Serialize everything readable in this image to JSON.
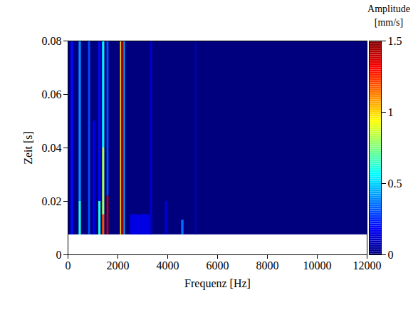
{
  "chart_data": {
    "type": "heatmap",
    "x_label": "Frequenz [Hz]",
    "y_label": "Zeit [s]",
    "xlim": [
      0,
      12000
    ],
    "xticks": [
      0,
      2000,
      4000,
      6000,
      8000,
      10000,
      12000
    ],
    "ylim": [
      0,
      0.08
    ],
    "yticks": [
      0,
      0.02,
      0.04,
      0.06,
      0.08
    ],
    "color": "jet",
    "cells": [
      {
        "x1": 0,
        "x2": 12000,
        "y1": 0.0075,
        "y2": 0.08,
        "value": 0
      },
      {
        "x1": 120,
        "x2": 220,
        "y1": 0.0075,
        "y2": 0.08,
        "value": 0.2
      },
      {
        "x1": 440,
        "x2": 530,
        "y1": 0.02,
        "y2": 0.08,
        "value": 0.4
      },
      {
        "x1": 440,
        "x2": 530,
        "y1": 0.0075,
        "y2": 0.02,
        "value": 0.6
      },
      {
        "x1": 820,
        "x2": 900,
        "y1": 0.0075,
        "y2": 0.08,
        "value": 0.3
      },
      {
        "x1": 1000,
        "x2": 1100,
        "y1": 0.0075,
        "y2": 0.05,
        "value": 0.15
      },
      {
        "x1": 1230,
        "x2": 1320,
        "y1": 0.0075,
        "y2": 0.02,
        "value": 0.6
      },
      {
        "x1": 1230,
        "x2": 1320,
        "y1": 0.02,
        "y2": 0.08,
        "value": 0.2
      },
      {
        "x1": 1380,
        "x2": 1470,
        "y1": 0.0075,
        "y2": 0.015,
        "value": 1.2
      },
      {
        "x1": 1380,
        "x2": 1470,
        "y1": 0.015,
        "y2": 0.04,
        "value": 0.8
      },
      {
        "x1": 1380,
        "x2": 1470,
        "y1": 0.04,
        "y2": 0.08,
        "value": 0.55
      },
      {
        "x1": 1560,
        "x2": 1640,
        "y1": 0.0075,
        "y2": 0.022,
        "value": 1.4
      },
      {
        "x1": 1560,
        "x2": 1640,
        "y1": 0.022,
        "y2": 0.08,
        "value": 0.3
      },
      {
        "x1": 2100,
        "x2": 2150,
        "y1": 0.0075,
        "y2": 0.08,
        "value": 1.0
      },
      {
        "x1": 2150,
        "x2": 2240,
        "y1": 0.0075,
        "y2": 0.08,
        "value": 1.45
      },
      {
        "x1": 2240,
        "x2": 2290,
        "y1": 0.0075,
        "y2": 0.08,
        "value": 0.45
      },
      {
        "x1": 2500,
        "x2": 3300,
        "y1": 0.0075,
        "y2": 0.015,
        "value": 0.15
      },
      {
        "x1": 3300,
        "x2": 3400,
        "y1": 0.0075,
        "y2": 0.08,
        "value": 0.1
      },
      {
        "x1": 3900,
        "x2": 4000,
        "y1": 0.0075,
        "y2": 0.02,
        "value": 0.12
      },
      {
        "x1": 4550,
        "x2": 4650,
        "y1": 0.0075,
        "y2": 0.013,
        "value": 0.35
      },
      {
        "x1": 5100,
        "x2": 5160,
        "y1": 0.0075,
        "y2": 0.08,
        "value": 0.08
      }
    ],
    "colorbar": {
      "label": "Amplitude [mm/s]",
      "range": [
        0,
        1.5
      ],
      "ticks": [
        0,
        0.5,
        1,
        1.5
      ]
    }
  }
}
